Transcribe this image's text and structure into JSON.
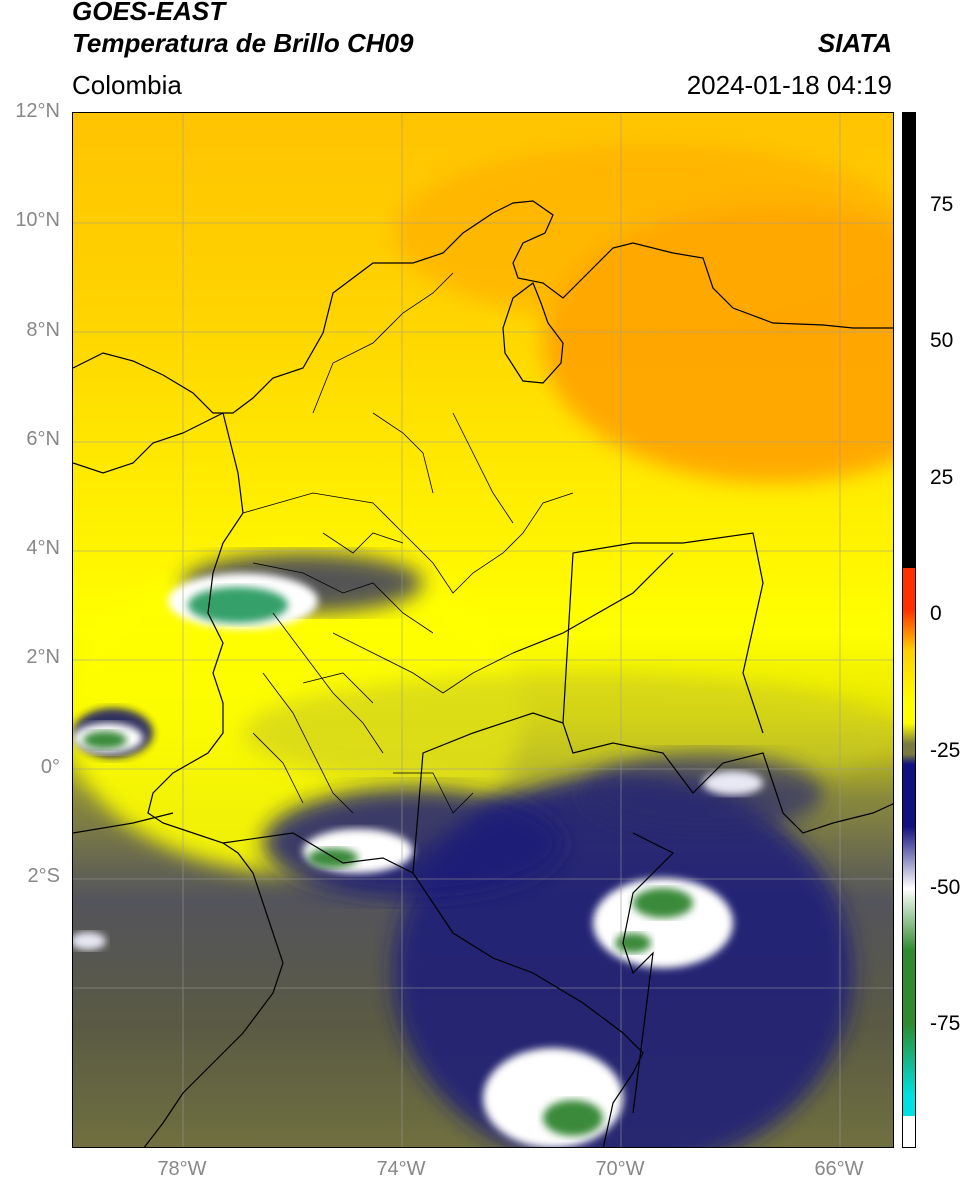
{
  "header": {
    "satellite": "GOES-EAST",
    "product": "Temperatura de Brillo CH09",
    "region": "Colombia",
    "organization": "SIATA",
    "datetime": "2024-01-18 04:19"
  },
  "map": {
    "lat_labels": [
      "12°N",
      "10°N",
      "8°N",
      "6°N",
      "4°N",
      "2°N",
      "0°",
      "2°S"
    ],
    "lon_labels": [
      "78°W",
      "74°W",
      "70°W",
      "66°W"
    ],
    "grid": true
  },
  "colorbar": {
    "ticks": [
      "75",
      "50",
      "25",
      "0",
      "-25",
      "-50",
      "-75"
    ],
    "colors": [
      "#000000",
      "#ff3000",
      "#ffd000",
      "#ffff00",
      "#7a7a40",
      "#101080",
      "#ffffff",
      "#2e8b2e",
      "#00e0e0"
    ]
  }
}
